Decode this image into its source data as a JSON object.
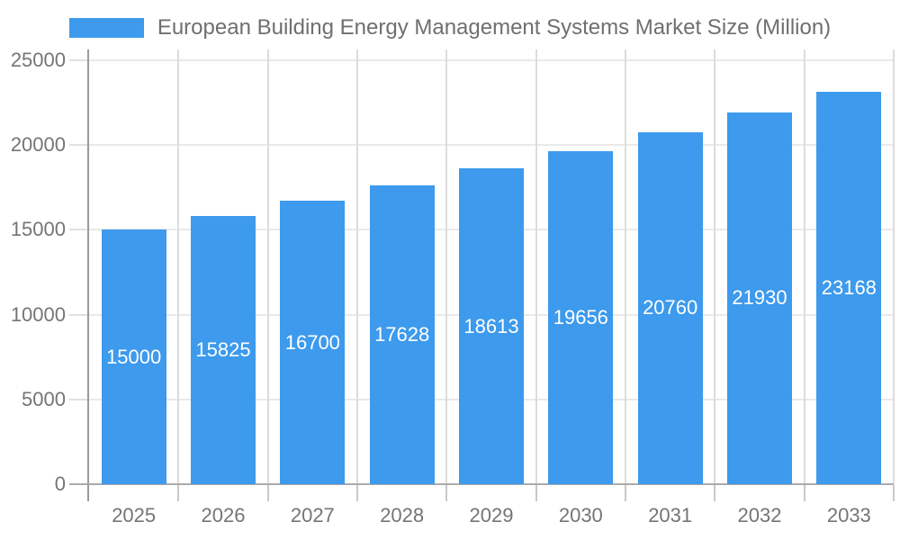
{
  "chart_data": {
    "type": "bar",
    "title": "European Building Energy Management Systems Market Size (Million)",
    "legend": [
      "European Building Energy Management Systems Market Size (Million)"
    ],
    "legend_position": "top",
    "categories": [
      "2025",
      "2026",
      "2027",
      "2028",
      "2029",
      "2030",
      "2031",
      "2032",
      "2033"
    ],
    "series": [
      {
        "name": "European Building Energy Management Systems Market Size (Million)",
        "values": [
          15000,
          15825,
          16700,
          17628,
          18613,
          19656,
          20760,
          21930,
          23168
        ]
      }
    ],
    "value_labels_shown": true,
    "xlabel": "",
    "ylabel": "",
    "ylim": [
      0,
      25000
    ],
    "yticks": [
      0,
      5000,
      10000,
      15000,
      20000,
      25000
    ],
    "grid": true,
    "colors": {
      "bar": "#3d9aec",
      "value_label": "#ffffff",
      "tick_label": "#757575",
      "legend_text": "#6f6f6f",
      "grid_horizontal": "#e9e9e9",
      "grid_vertical": "#dcdcdc",
      "y_axis": "#9b9b9b",
      "x_axis": "#ababab",
      "background": "#ffffff"
    }
  }
}
